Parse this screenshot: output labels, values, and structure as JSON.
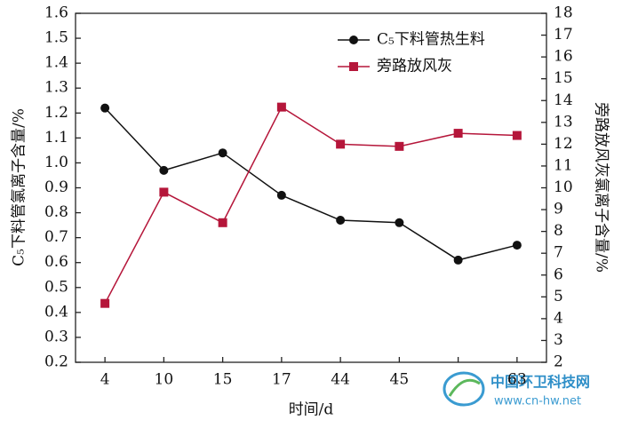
{
  "chart_data": {
    "type": "line",
    "x_label": "时间/d",
    "y_label": "C₅下料管氯离子含量/%",
    "y2_label": "旁路放风灰氯离子含量/%",
    "categories": [
      "4",
      "10",
      "15",
      "17",
      "44",
      "45",
      null,
      "63"
    ],
    "series": [
      {
        "name": "C₅下料管热生料",
        "color": "#111111",
        "marker": "circle",
        "values": [
          1.22,
          0.97,
          1.04,
          0.87,
          0.77,
          0.76,
          0.61,
          0.67
        ]
      },
      {
        "name": "旁路放风灰",
        "color": "#b5163a",
        "marker": "square",
        "axis": "y2",
        "values": [
          4.7,
          9.8,
          8.4,
          13.7,
          12.0,
          11.9,
          12.5,
          12.4
        ]
      }
    ],
    "ylim": [
      0.2,
      1.6
    ],
    "yticks": [
      0.2,
      0.3,
      0.4,
      0.5,
      0.6,
      0.7,
      0.8,
      0.9,
      {
        "value": 1,
        "label": "1.0"
      },
      1.1,
      1.2,
      1.3,
      1.4,
      1.5,
      1.6
    ],
    "y2lim": [
      2,
      18
    ],
    "y2ticks": [
      2,
      3,
      4,
      5,
      6,
      7,
      8,
      9,
      10,
      11,
      12,
      13,
      14,
      15,
      16,
      17,
      18
    ],
    "legend": "upper right"
  },
  "watermark": {
    "name": "中国环卫科技网",
    "url": "www.cn-hw.net"
  }
}
